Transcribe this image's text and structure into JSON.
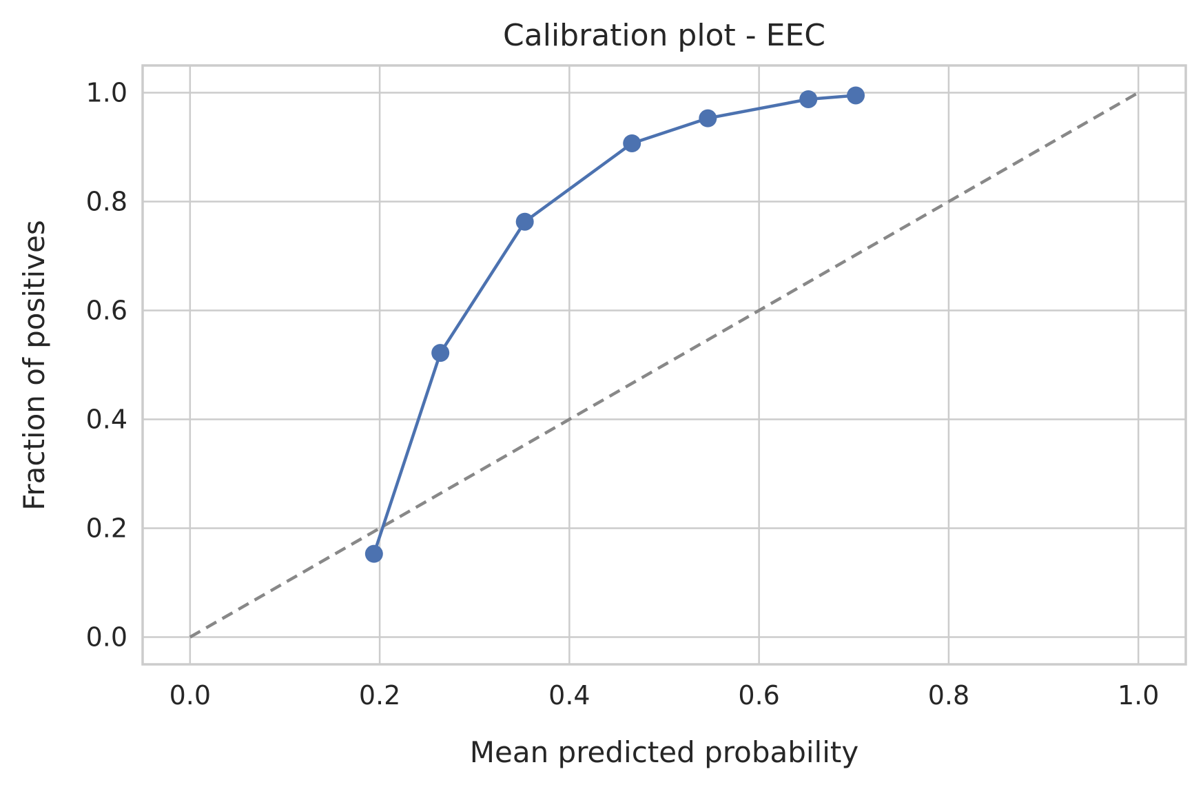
{
  "chart_data": {
    "type": "line",
    "title": "Calibration plot - EEC",
    "xlabel": "Mean predicted probability",
    "ylabel": "Fraction of positives",
    "xlim": [
      -0.05,
      1.05
    ],
    "ylim": [
      -0.05,
      1.05
    ],
    "xticks": [
      0.0,
      0.2,
      0.4,
      0.6,
      0.8,
      1.0
    ],
    "yticks": [
      0.0,
      0.2,
      0.4,
      0.6,
      0.8,
      1.0
    ],
    "xtick_labels": [
      "0.0",
      "0.2",
      "0.4",
      "0.6",
      "0.8",
      "1.0"
    ],
    "ytick_labels": [
      "0.0",
      "0.2",
      "0.4",
      "0.6",
      "0.8",
      "1.0"
    ],
    "grid": true,
    "series": [
      {
        "color": "#4c72b0",
        "marker": "circle",
        "x": [
          0.194,
          0.264,
          0.353,
          0.466,
          0.546,
          0.652,
          0.702
        ],
        "y": [
          0.153,
          0.522,
          0.763,
          0.907,
          0.953,
          0.988,
          0.995
        ]
      }
    ],
    "reference_line": {
      "style": "dashed",
      "color": "#888888",
      "x": [
        0.0,
        1.0
      ],
      "y": [
        0.0,
        1.0
      ]
    }
  }
}
